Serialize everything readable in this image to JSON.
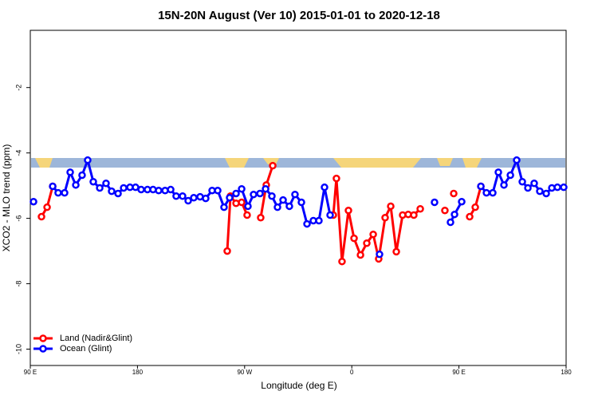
{
  "chart_data": {
    "type": "line",
    "title": "15N-20N August (Ver 10)   2015-01-01 to 2020-12-18",
    "x_label": "Longitude (deg E)",
    "y_label": "XCO2 - MLO trend (ppm)",
    "xlim": [
      90,
      540
    ],
    "xticks": [
      {
        "value": 90,
        "label": "90 E"
      },
      {
        "value": 180,
        "label": "180"
      },
      {
        "value": 270,
        "label": "90 W"
      },
      {
        "value": 360,
        "label": "0"
      },
      {
        "value": 450,
        "label": "90 E"
      },
      {
        "value": 540,
        "label": "180"
      }
    ],
    "ylim": [
      -10.5,
      -0.25
    ],
    "yticks": [
      -10,
      -8,
      -6,
      -4,
      -2
    ],
    "legend": "bottom-left",
    "series": [
      {
        "name": "Land (Nadir&Glint)",
        "color": "#ff0000",
        "x": [
          99.4,
          104.1,
          108.8,
          null,
          255.4,
          258.1,
          262.8,
          267.5,
          272.1,
          null,
          283.5,
          288.2,
          293.6,
          null,
          344.5,
          347.1,
          351.8,
          357.2,
          361.9,
          367.3,
          372.6,
          378.0,
          382.6,
          388.0,
          392.7,
          397.4,
          402.7,
          407.4,
          412.1,
          417.5,
          null,
          438.2,
          null,
          445.6,
          null,
          459.0,
          463.7,
          468.4
        ],
        "values": [
          -5.95,
          -5.66,
          -5.02,
          null,
          -7.0,
          -5.32,
          -5.54,
          -5.51,
          -5.9,
          null,
          -5.98,
          -4.98,
          -4.39,
          null,
          -5.9,
          -4.78,
          -7.32,
          -5.76,
          -6.61,
          -7.12,
          -6.76,
          -6.49,
          -7.24,
          -5.98,
          -5.63,
          -7.02,
          -5.9,
          -5.88,
          -5.9,
          -5.71,
          null,
          -5.76,
          null,
          -5.24,
          null,
          -5.95,
          -5.66,
          -5.02
        ]
      },
      {
        "name": "Ocean (Glint)",
        "color": "#0000ff",
        "x": [
          92.7,
          null,
          108.8,
          113.4,
          118.8,
          123.5,
          128.2,
          133.5,
          138.2,
          142.9,
          148.3,
          153.6,
          158.3,
          163.7,
          168.4,
          173.7,
          178.4,
          183.1,
          188.4,
          193.1,
          197.8,
          203.2,
          207.9,
          212.5,
          217.9,
          222.6,
          227.3,
          232.6,
          237.3,
          242.7,
          247.4,
          252.7,
          257.4,
          262.8,
          267.5,
          272.8,
          277.5,
          282.9,
          287.6,
          292.9,
          297.6,
          302.3,
          307.6,
          312.3,
          317.7,
          322.4,
          327.7,
          332.4,
          337.1,
          341.8,
          null,
          383.3,
          null,
          429.5,
          null,
          442.9,
          446.3,
          452.3,
          null,
          468.4,
          473.1,
          478.4,
          483.1,
          487.8,
          493.2,
          498.5,
          503.2,
          507.9,
          513.2,
          517.9,
          523.3,
          528.0,
          532.7,
          538.0
        ],
        "values": [
          -5.49,
          null,
          -5.02,
          -5.22,
          -5.22,
          -4.59,
          -4.98,
          -4.68,
          -4.22,
          -4.88,
          -5.07,
          -4.93,
          -5.17,
          -5.24,
          -5.07,
          -5.05,
          -5.05,
          -5.12,
          -5.12,
          -5.12,
          -5.15,
          -5.15,
          -5.12,
          -5.32,
          -5.32,
          -5.46,
          -5.37,
          -5.34,
          -5.39,
          -5.15,
          -5.15,
          -5.66,
          -5.37,
          -5.24,
          -5.1,
          -5.63,
          -5.27,
          -5.24,
          -5.1,
          -5.32,
          -5.66,
          -5.44,
          -5.63,
          -5.27,
          -5.51,
          -6.17,
          -6.07,
          -6.07,
          -5.05,
          -5.9,
          null,
          -7.1,
          null,
          -5.51,
          null,
          -6.12,
          -5.88,
          -5.49,
          null,
          -5.02,
          -5.22,
          -5.22,
          -4.59,
          -4.98,
          -4.68,
          -4.22,
          -4.88,
          -5.07,
          -4.93,
          -5.17,
          -5.24,
          -5.07,
          -5.05,
          -5.05
        ]
      }
    ]
  }
}
